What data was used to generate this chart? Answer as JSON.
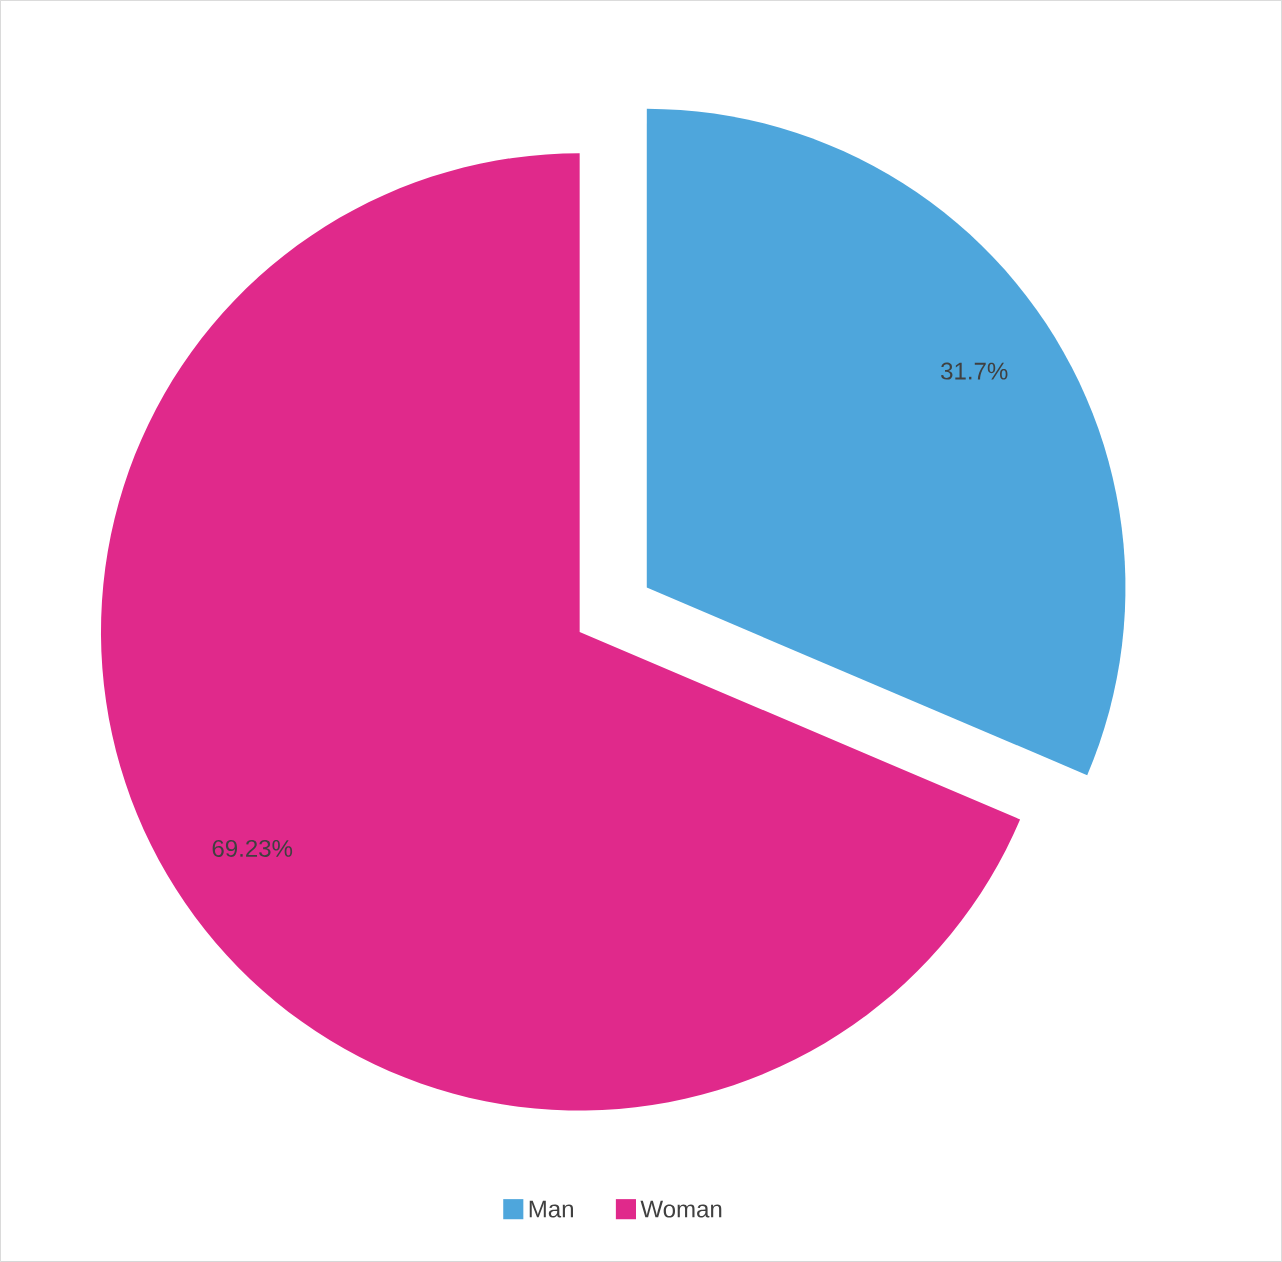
{
  "chart_data": {
    "type": "pie",
    "categories": [
      "Man",
      "Woman"
    ],
    "values": [
      31.7,
      69.23
    ],
    "colors": [
      "#4ea6dc",
      "#e0298b"
    ],
    "value_labels": [
      "31.7%",
      "69.23%"
    ],
    "legend": "bottom"
  }
}
